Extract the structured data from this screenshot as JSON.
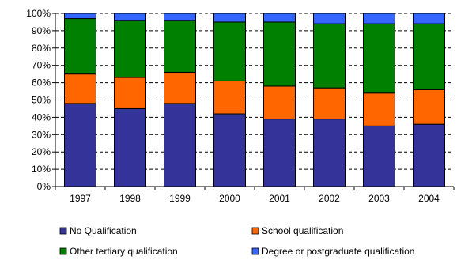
{
  "chart_data": {
    "type": "bar",
    "stacked": true,
    "percent": true,
    "categories": [
      "1997",
      "1998",
      "1999",
      "2000",
      "2001",
      "2002",
      "2003",
      "2004"
    ],
    "series": [
      {
        "name": "No Qualification",
        "color": "#333399",
        "values": [
          48,
          45,
          48,
          42,
          39,
          39,
          35,
          36
        ]
      },
      {
        "name": "School qualification",
        "color": "#FF6600",
        "values": [
          17,
          18,
          18,
          19,
          19,
          18,
          19,
          20
        ]
      },
      {
        "name": "Other tertiary qualification",
        "color": "#008000",
        "values": [
          32,
          33,
          30,
          34,
          37,
          37,
          40,
          38
        ]
      },
      {
        "name": "Degree or postgraduate qualification",
        "color": "#3366FF",
        "values": [
          3,
          4,
          4,
          5,
          5,
          6,
          6,
          6
        ]
      }
    ],
    "ylim": [
      0,
      100
    ],
    "yticks": [
      "0%",
      "10%",
      "20%",
      "30%",
      "40%",
      "50%",
      "60%",
      "70%",
      "80%",
      "90%",
      "100%"
    ],
    "grid": true,
    "legend_position": "bottom"
  }
}
